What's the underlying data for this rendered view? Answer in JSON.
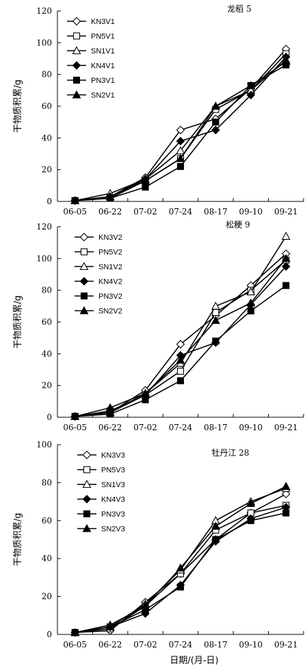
{
  "chart_data": [
    {
      "type": "line",
      "title": "龙稻 5",
      "ylabel": "干物质积累/g",
      "ylim": [
        0,
        120
      ],
      "yticks": [
        0,
        20,
        40,
        60,
        80,
        100,
        120
      ],
      "categories": [
        "06-05",
        "06-22",
        "07-02",
        "07-24",
        "08-17",
        "09-10",
        "09-21"
      ],
      "series": [
        {
          "name": "KN3V1",
          "marker": "diamond-open",
          "values": [
            0.5,
            3,
            15,
            45,
            52,
            71,
            96
          ]
        },
        {
          "name": "PN5V1",
          "marker": "square-open",
          "values": [
            0.5,
            2,
            13,
            27,
            58,
            70,
            93
          ]
        },
        {
          "name": "SN1V1",
          "marker": "triangle-open",
          "values": [
            0.5,
            5,
            14,
            32,
            60,
            70,
            89
          ]
        },
        {
          "name": "KN4V1",
          "marker": "diamond-filled",
          "values": [
            0.5,
            3,
            14,
            38,
            45,
            67,
            91
          ]
        },
        {
          "name": "PN3V1",
          "marker": "square-filled",
          "values": [
            0.5,
            2,
            9,
            22,
            50,
            73,
            86
          ]
        },
        {
          "name": "SN2V1",
          "marker": "triangle-filled",
          "values": [
            0.5,
            3,
            13,
            27,
            60,
            73,
            88
          ]
        }
      ]
    },
    {
      "type": "line",
      "title": "松粳 9",
      "ylabel": "干物质积累/g",
      "ylim": [
        0,
        120
      ],
      "yticks": [
        0,
        20,
        40,
        60,
        80,
        100,
        120
      ],
      "categories": [
        "06-05",
        "06-22",
        "07-02",
        "07-24",
        "08-17",
        "09-10",
        "09-21"
      ],
      "series": [
        {
          "name": "KN3V2",
          "marker": "diamond-open",
          "values": [
            0.5,
            3,
            17,
            46,
            64,
            83,
            103
          ]
        },
        {
          "name": "PN5V2",
          "marker": "square-open",
          "values": [
            0.5,
            4,
            14,
            29,
            66,
            80,
            99
          ]
        },
        {
          "name": "SN1V2",
          "marker": "triangle-open",
          "values": [
            0.5,
            3,
            15,
            34,
            70,
            79,
            114
          ]
        },
        {
          "name": "KN4V2",
          "marker": "diamond-filled",
          "values": [
            0.5,
            3,
            14,
            39,
            47,
            71,
            95
          ]
        },
        {
          "name": "PN3V2",
          "marker": "square-filled",
          "values": [
            0.5,
            2,
            11,
            23,
            48,
            67,
            83
          ]
        },
        {
          "name": "SN2V2",
          "marker": "triangle-filled",
          "values": [
            0.5,
            6,
            15,
            36,
            61,
            72,
            100
          ]
        }
      ]
    },
    {
      "type": "line",
      "title": "牡丹江 28",
      "ylabel": "干物质积累/g",
      "xlabel": "日期/(月-日)",
      "ylim": [
        0,
        100
      ],
      "yticks": [
        0,
        20,
        40,
        60,
        80,
        100
      ],
      "categories": [
        "06-05",
        "06-22",
        "07-02",
        "07-24",
        "08-17",
        "09-10",
        "09-21"
      ],
      "series": [
        {
          "name": "KN3V3",
          "marker": "diamond-open",
          "values": [
            1,
            2,
            17,
            32,
            50,
            64,
            74
          ]
        },
        {
          "name": "PN5V3",
          "marker": "square-open",
          "values": [
            1,
            3,
            15,
            32,
            55,
            64,
            68
          ]
        },
        {
          "name": "SN1V3",
          "marker": "triangle-open",
          "values": [
            1,
            4,
            16,
            34,
            60,
            70,
            77
          ]
        },
        {
          "name": "KN4V3",
          "marker": "diamond-filled",
          "values": [
            1,
            4,
            11,
            26,
            49,
            61,
            67
          ]
        },
        {
          "name": "PN3V3",
          "marker": "square-filled",
          "values": [
            1,
            4,
            13,
            25,
            50,
            60,
            64
          ]
        },
        {
          "name": "SN2V3",
          "marker": "triangle-filled",
          "values": [
            1,
            5,
            15,
            35,
            57,
            69,
            78
          ]
        }
      ]
    }
  ]
}
